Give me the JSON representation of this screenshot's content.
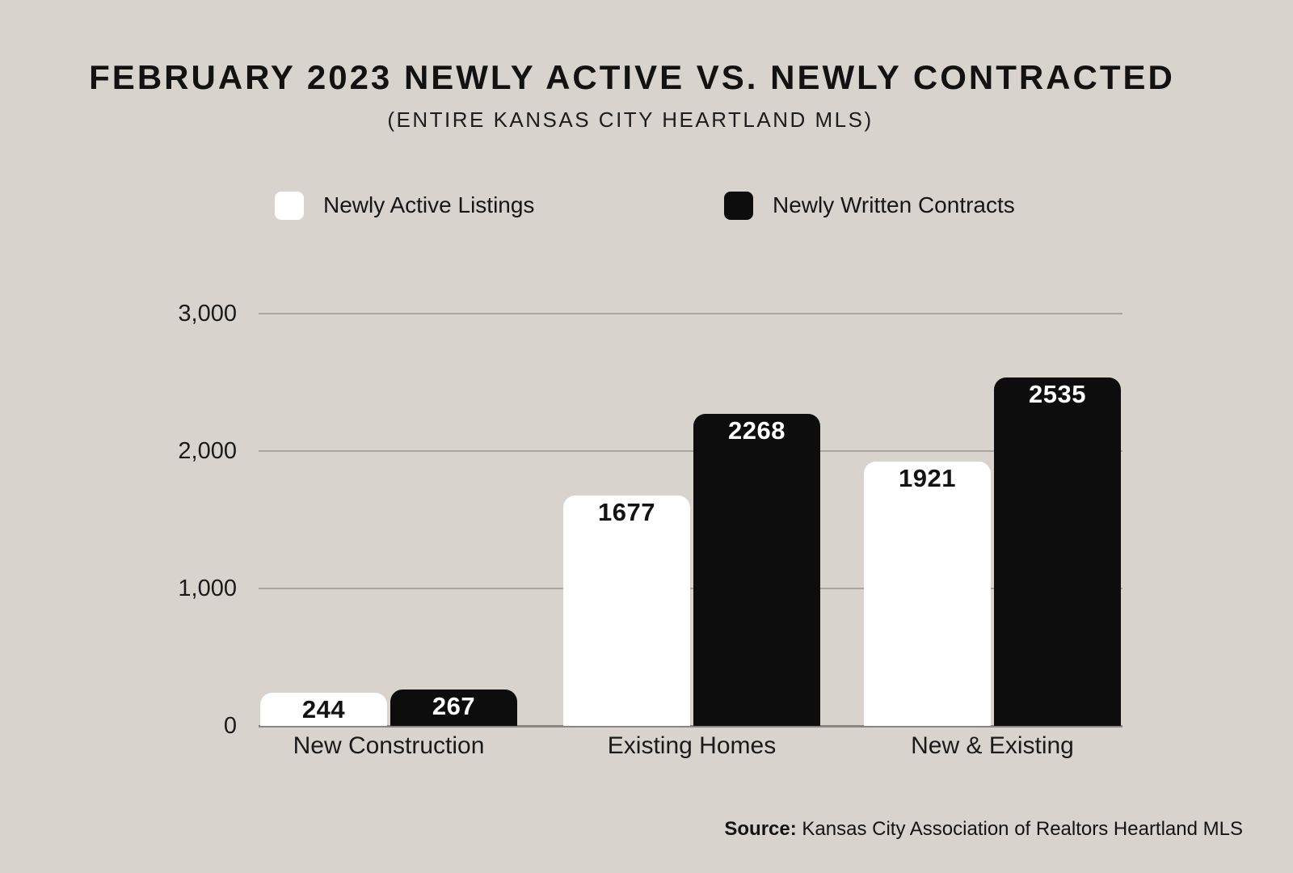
{
  "title": "FEBRUARY 2023 NEWLY ACTIVE VS. NEWLY CONTRACTED",
  "subtitle": "(ENTIRE KANSAS CITY HEARTLAND MLS)",
  "source": {
    "prefix": "Source:",
    "text": " Kansas City Association of Realtors Heartland MLS"
  },
  "colors": {
    "background": "#d8d4cd",
    "gridline": "#aaa69f",
    "baseline": "#8a867f",
    "text": "#161616",
    "bar_white": "#ffffff",
    "bar_black": "#0d0d0d"
  },
  "chart_data": {
    "type": "bar",
    "categories": [
      "New Construction",
      "Existing Homes",
      "New & Existing"
    ],
    "series": [
      {
        "name": "Newly Active Listings",
        "values": [
          244,
          1677,
          1921
        ],
        "color": "#ffffff",
        "label_color": "#131313"
      },
      {
        "name": "Newly Written Contracts",
        "values": [
          267,
          2268,
          2535
        ],
        "color": "#0d0d0d",
        "label_color": "#ffffff"
      }
    ],
    "ylim": [
      0,
      3000
    ],
    "yticks": [
      0,
      1000,
      2000,
      3000
    ],
    "ytick_labels": [
      "0",
      "1,000",
      "2,000",
      "3,000"
    ],
    "grid": true,
    "legend_position": "top"
  }
}
